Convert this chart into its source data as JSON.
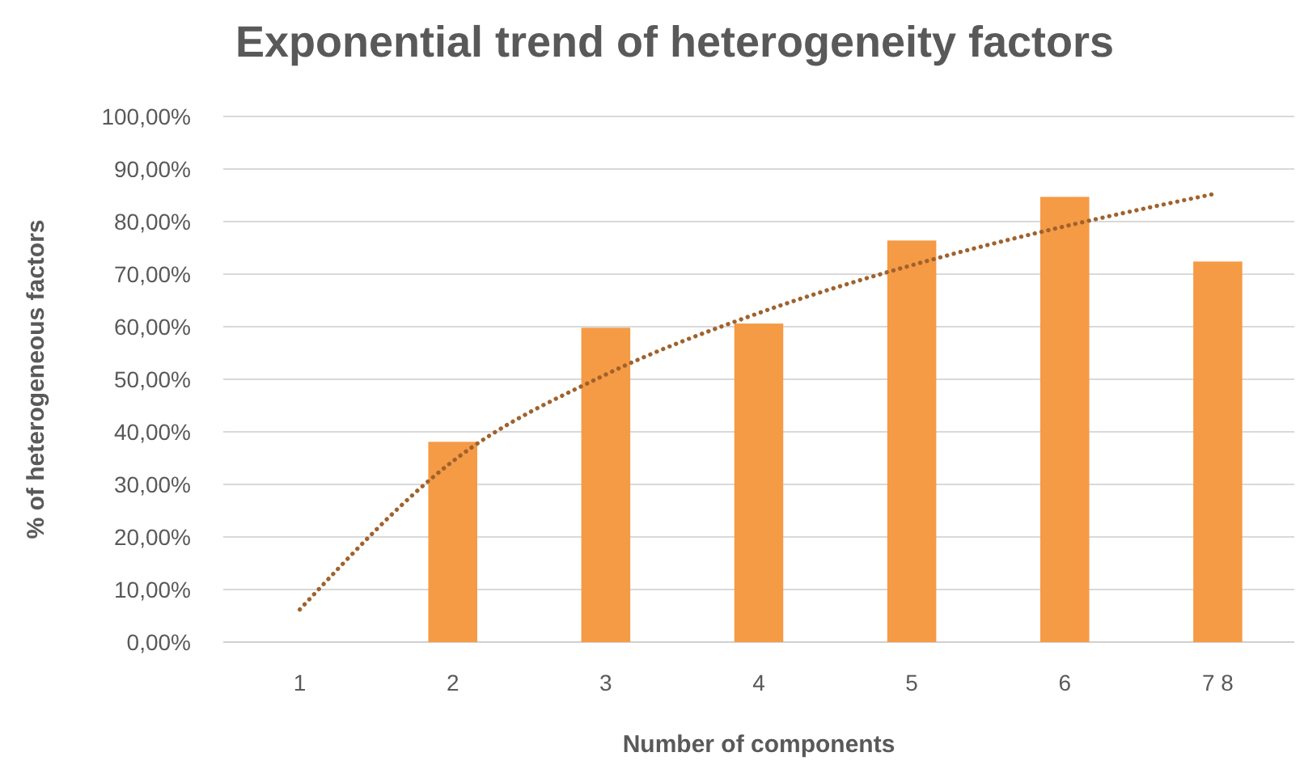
{
  "chart_data": {
    "type": "bar",
    "title": "Exponential trend of heterogeneity factors",
    "xlabel": "Number of components",
    "ylabel": "% of heterogeneous factors",
    "categories": [
      "1",
      "2",
      "3",
      "4",
      "5",
      "6",
      "7 8"
    ],
    "series": [
      {
        "color": "#f59a45",
        "values": [
          null,
          38.1,
          59.8,
          60.6,
          76.4,
          84.7,
          72.4
        ]
      },
      {
        "type": "line",
        "color": "#a0622d",
        "line_style": "dotted",
        "values": [
          6.2,
          34.4,
          50.9,
          62.6,
          71.7,
          79.1,
          85.4
        ]
      }
    ],
    "ylim": [
      0,
      100
    ],
    "yticks": [
      {
        "value": 0,
        "label": "0,00%"
      },
      {
        "value": 10,
        "label": "10,00%"
      },
      {
        "value": 20,
        "label": "20,00%"
      },
      {
        "value": 30,
        "label": "30,00%"
      },
      {
        "value": 40,
        "label": "40,00%"
      },
      {
        "value": 50,
        "label": "50,00%"
      },
      {
        "value": 60,
        "label": "60,00%"
      },
      {
        "value": 70,
        "label": "70,00%"
      },
      {
        "value": 80,
        "label": "80,00%"
      },
      {
        "value": 90,
        "label": "90,00%"
      },
      {
        "value": 100,
        "label": "100,00%"
      }
    ],
    "grid": "y"
  }
}
